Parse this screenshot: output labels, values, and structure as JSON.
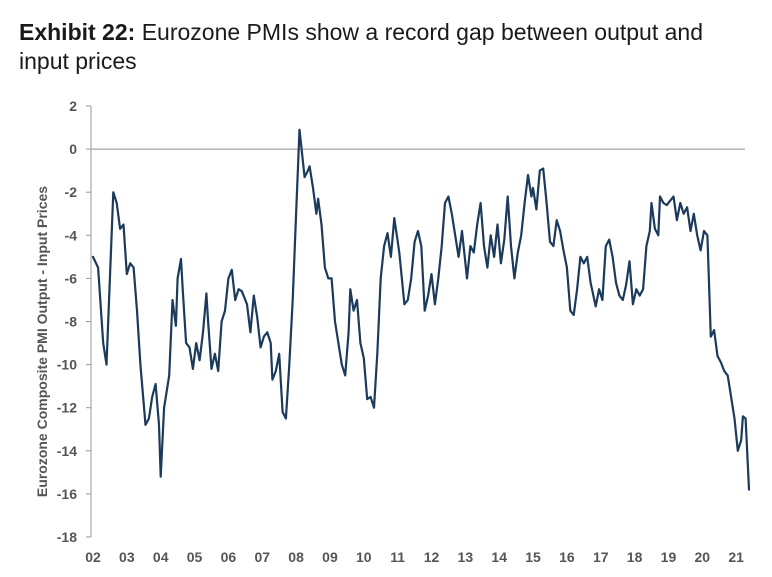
{
  "title": {
    "prefix": "Exhibit 22:",
    "text": " Eurozone PMIs show a record gap between output and input prices"
  },
  "colors": {
    "line": "#1b3a5c",
    "axis": "#999999",
    "tick_text": "#555555"
  },
  "chart_data": {
    "type": "line",
    "title": "Exhibit 22: Eurozone PMIs show a record gap between output and input prices",
    "xlabel": "",
    "ylabel": "Eurozone Composite PMI Output - Input Prices",
    "ylim": [
      -18,
      2
    ],
    "yticks": [
      2,
      0,
      -2,
      -4,
      -6,
      -8,
      -10,
      -12,
      -14,
      -16,
      -18
    ],
    "xlim": [
      2002.0,
      2021.6
    ],
    "xtick_labels": [
      "02",
      "03",
      "04",
      "05",
      "06",
      "07",
      "08",
      "09",
      "10",
      "11",
      "12",
      "13",
      "14",
      "15",
      "16",
      "17",
      "18",
      "19",
      "20",
      "21"
    ],
    "reference_line": 0,
    "series": [
      {
        "name": "Eurozone Composite PMI Output - Input Prices",
        "anchors": [
          [
            2002.0,
            -5.0
          ],
          [
            2002.15,
            -5.5
          ],
          [
            2002.3,
            -9.0
          ],
          [
            2002.4,
            -10.0
          ],
          [
            2002.55,
            -4.0
          ],
          [
            2002.6,
            -2.0
          ],
          [
            2002.7,
            -2.5
          ],
          [
            2002.8,
            -3.7
          ],
          [
            2002.9,
            -3.5
          ],
          [
            2003.0,
            -5.8
          ],
          [
            2003.1,
            -5.3
          ],
          [
            2003.2,
            -5.5
          ],
          [
            2003.3,
            -7.5
          ],
          [
            2003.4,
            -10.0
          ],
          [
            2003.55,
            -12.8
          ],
          [
            2003.65,
            -12.5
          ],
          [
            2003.75,
            -11.5
          ],
          [
            2003.85,
            -10.9
          ],
          [
            2003.95,
            -12.8
          ],
          [
            2004.0,
            -15.2
          ],
          [
            2004.1,
            -12.0
          ],
          [
            2004.25,
            -10.5
          ],
          [
            2004.35,
            -7.0
          ],
          [
            2004.45,
            -8.2
          ],
          [
            2004.5,
            -6.0
          ],
          [
            2004.6,
            -5.1
          ],
          [
            2004.65,
            -6.5
          ],
          [
            2004.75,
            -9.0
          ],
          [
            2004.85,
            -9.2
          ],
          [
            2004.95,
            -10.2
          ],
          [
            2005.05,
            -9.0
          ],
          [
            2005.15,
            -9.8
          ],
          [
            2005.25,
            -8.5
          ],
          [
            2005.35,
            -6.7
          ],
          [
            2005.4,
            -8.0
          ],
          [
            2005.5,
            -10.2
          ],
          [
            2005.6,
            -9.5
          ],
          [
            2005.7,
            -10.3
          ],
          [
            2005.8,
            -8.0
          ],
          [
            2005.9,
            -7.5
          ],
          [
            2006.0,
            -6.0
          ],
          [
            2006.1,
            -5.6
          ],
          [
            2006.2,
            -7.0
          ],
          [
            2006.3,
            -6.5
          ],
          [
            2006.4,
            -6.6
          ],
          [
            2006.5,
            -7.0
          ],
          [
            2006.55,
            -7.2
          ],
          [
            2006.65,
            -8.5
          ],
          [
            2006.75,
            -6.8
          ],
          [
            2006.85,
            -7.8
          ],
          [
            2006.95,
            -9.2
          ],
          [
            2007.05,
            -8.7
          ],
          [
            2007.15,
            -8.5
          ],
          [
            2007.25,
            -9.0
          ],
          [
            2007.3,
            -10.7
          ],
          [
            2007.4,
            -10.3
          ],
          [
            2007.5,
            -9.5
          ],
          [
            2007.6,
            -12.2
          ],
          [
            2007.7,
            -12.5
          ],
          [
            2007.8,
            -10.0
          ],
          [
            2007.9,
            -7.0
          ],
          [
            2008.0,
            -3.0
          ],
          [
            2008.1,
            0.9
          ],
          [
            2008.25,
            -1.3
          ],
          [
            2008.35,
            -1.0
          ],
          [
            2008.4,
            -0.8
          ],
          [
            2008.5,
            -1.8
          ],
          [
            2008.6,
            -3.0
          ],
          [
            2008.65,
            -2.3
          ],
          [
            2008.75,
            -3.5
          ],
          [
            2008.85,
            -5.5
          ],
          [
            2008.95,
            -6.0
          ],
          [
            2009.05,
            -6.0
          ],
          [
            2009.15,
            -8.0
          ],
          [
            2009.25,
            -9.0
          ],
          [
            2009.35,
            -10.0
          ],
          [
            2009.45,
            -10.5
          ],
          [
            2009.55,
            -8.5
          ],
          [
            2009.6,
            -6.5
          ],
          [
            2009.7,
            -7.5
          ],
          [
            2009.8,
            -7.0
          ],
          [
            2009.9,
            -9.0
          ],
          [
            2010.0,
            -9.7
          ],
          [
            2010.1,
            -11.6
          ],
          [
            2010.2,
            -11.5
          ],
          [
            2010.3,
            -12.0
          ],
          [
            2010.4,
            -9.5
          ],
          [
            2010.5,
            -6.0
          ],
          [
            2010.6,
            -4.5
          ],
          [
            2010.7,
            -3.9
          ],
          [
            2010.8,
            -5.0
          ],
          [
            2010.9,
            -3.2
          ],
          [
            2011.05,
            -4.8
          ],
          [
            2011.2,
            -7.2
          ],
          [
            2011.3,
            -7.0
          ],
          [
            2011.4,
            -6.0
          ],
          [
            2011.5,
            -4.3
          ],
          [
            2011.6,
            -3.8
          ],
          [
            2011.7,
            -4.5
          ],
          [
            2011.8,
            -7.5
          ],
          [
            2011.9,
            -6.8
          ],
          [
            2012.0,
            -5.8
          ],
          [
            2012.1,
            -7.2
          ],
          [
            2012.2,
            -6.0
          ],
          [
            2012.3,
            -4.5
          ],
          [
            2012.4,
            -2.5
          ],
          [
            2012.5,
            -2.2
          ],
          [
            2012.6,
            -3.0
          ],
          [
            2012.7,
            -4.0
          ],
          [
            2012.8,
            -5.0
          ],
          [
            2012.9,
            -3.8
          ],
          [
            2013.05,
            -6.0
          ],
          [
            2013.15,
            -4.5
          ],
          [
            2013.25,
            -4.8
          ],
          [
            2013.35,
            -3.5
          ],
          [
            2013.45,
            -2.5
          ],
          [
            2013.55,
            -4.5
          ],
          [
            2013.65,
            -5.5
          ],
          [
            2013.75,
            -4.0
          ],
          [
            2013.85,
            -5.0
          ],
          [
            2013.95,
            -3.5
          ],
          [
            2014.05,
            -5.3
          ],
          [
            2014.15,
            -4.2
          ],
          [
            2014.25,
            -2.2
          ],
          [
            2014.35,
            -4.5
          ],
          [
            2014.45,
            -6.0
          ],
          [
            2014.55,
            -4.8
          ],
          [
            2014.65,
            -4.0
          ],
          [
            2014.75,
            -2.5
          ],
          [
            2014.85,
            -1.2
          ],
          [
            2014.95,
            -2.2
          ],
          [
            2015.0,
            -1.8
          ],
          [
            2015.1,
            -2.8
          ],
          [
            2015.2,
            -1.0
          ],
          [
            2015.3,
            -0.9
          ],
          [
            2015.4,
            -2.5
          ],
          [
            2015.5,
            -4.3
          ],
          [
            2015.6,
            -4.5
          ],
          [
            2015.7,
            -3.3
          ],
          [
            2015.8,
            -3.8
          ],
          [
            2015.9,
            -4.7
          ],
          [
            2016.0,
            -5.5
          ],
          [
            2016.1,
            -7.5
          ],
          [
            2016.2,
            -7.7
          ],
          [
            2016.3,
            -6.5
          ],
          [
            2016.4,
            -5.0
          ],
          [
            2016.5,
            -5.3
          ],
          [
            2016.6,
            -5.0
          ],
          [
            2016.7,
            -6.2
          ],
          [
            2016.85,
            -7.3
          ],
          [
            2016.95,
            -6.5
          ],
          [
            2017.05,
            -7.0
          ],
          [
            2017.15,
            -4.5
          ],
          [
            2017.25,
            -4.2
          ],
          [
            2017.35,
            -5.0
          ],
          [
            2017.45,
            -6.2
          ],
          [
            2017.55,
            -6.8
          ],
          [
            2017.65,
            -7.0
          ],
          [
            2017.75,
            -6.3
          ],
          [
            2017.85,
            -5.2
          ],
          [
            2017.95,
            -7.2
          ],
          [
            2018.05,
            -6.5
          ],
          [
            2018.15,
            -6.8
          ],
          [
            2018.25,
            -6.5
          ],
          [
            2018.35,
            -4.5
          ],
          [
            2018.45,
            -3.8
          ],
          [
            2018.5,
            -2.5
          ],
          [
            2018.6,
            -3.7
          ],
          [
            2018.7,
            -4.0
          ],
          [
            2018.75,
            -2.2
          ],
          [
            2018.85,
            -2.5
          ],
          [
            2018.95,
            -2.6
          ],
          [
            2019.05,
            -2.4
          ],
          [
            2019.15,
            -2.2
          ],
          [
            2019.25,
            -3.3
          ],
          [
            2019.35,
            -2.5
          ],
          [
            2019.45,
            -3.0
          ],
          [
            2019.55,
            -2.7
          ],
          [
            2019.65,
            -3.8
          ],
          [
            2019.75,
            -3.0
          ],
          [
            2019.85,
            -4.0
          ],
          [
            2019.95,
            -4.7
          ],
          [
            2020.05,
            -3.8
          ],
          [
            2020.15,
            -4.0
          ],
          [
            2020.25,
            -8.7
          ],
          [
            2020.35,
            -8.4
          ],
          [
            2020.45,
            -9.6
          ],
          [
            2020.55,
            -9.9
          ],
          [
            2020.65,
            -10.3
          ],
          [
            2020.75,
            -10.5
          ],
          [
            2020.85,
            -11.5
          ],
          [
            2020.95,
            -12.5
          ],
          [
            2021.05,
            -14.0
          ],
          [
            2021.15,
            -13.5
          ],
          [
            2021.2,
            -12.4
          ],
          [
            2021.28,
            -12.5
          ],
          [
            2021.38,
            -15.8
          ]
        ]
      }
    ]
  }
}
